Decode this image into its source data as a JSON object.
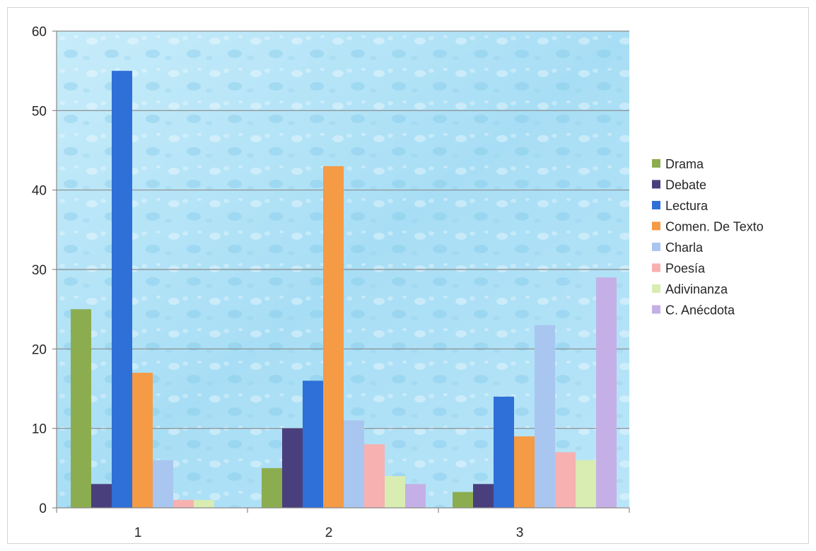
{
  "chart_data": {
    "type": "bar",
    "title": "",
    "xlabel": "",
    "ylabel": "",
    "categories": [
      "1",
      "2",
      "3"
    ],
    "ylim": [
      0,
      60
    ],
    "yticks": [
      0,
      10,
      20,
      30,
      40,
      50,
      60
    ],
    "grid": true,
    "legend_position": "right",
    "series": [
      {
        "name": "Drama",
        "color": "#8cad4f",
        "values": [
          25,
          5,
          2
        ]
      },
      {
        "name": "Debate",
        "color": "#4a3f7d",
        "values": [
          3,
          10,
          3
        ]
      },
      {
        "name": "Lectura",
        "color": "#2e6fd8",
        "values": [
          55,
          16,
          14
        ]
      },
      {
        "name": "Comen. De Texto",
        "color": "#f59a45",
        "values": [
          17,
          43,
          9
        ]
      },
      {
        "name": "Charla",
        "color": "#a9c6f0",
        "values": [
          6,
          11,
          23
        ]
      },
      {
        "name": "Poesía",
        "color": "#f7b1b1",
        "values": [
          1,
          8,
          7
        ]
      },
      {
        "name": "Adivinanza",
        "color": "#d9ecb2",
        "values": [
          1,
          4,
          6
        ]
      },
      {
        "name": "C. Anécdota",
        "color": "#c4b0e6",
        "values": [
          0,
          3,
          29
        ]
      }
    ]
  }
}
